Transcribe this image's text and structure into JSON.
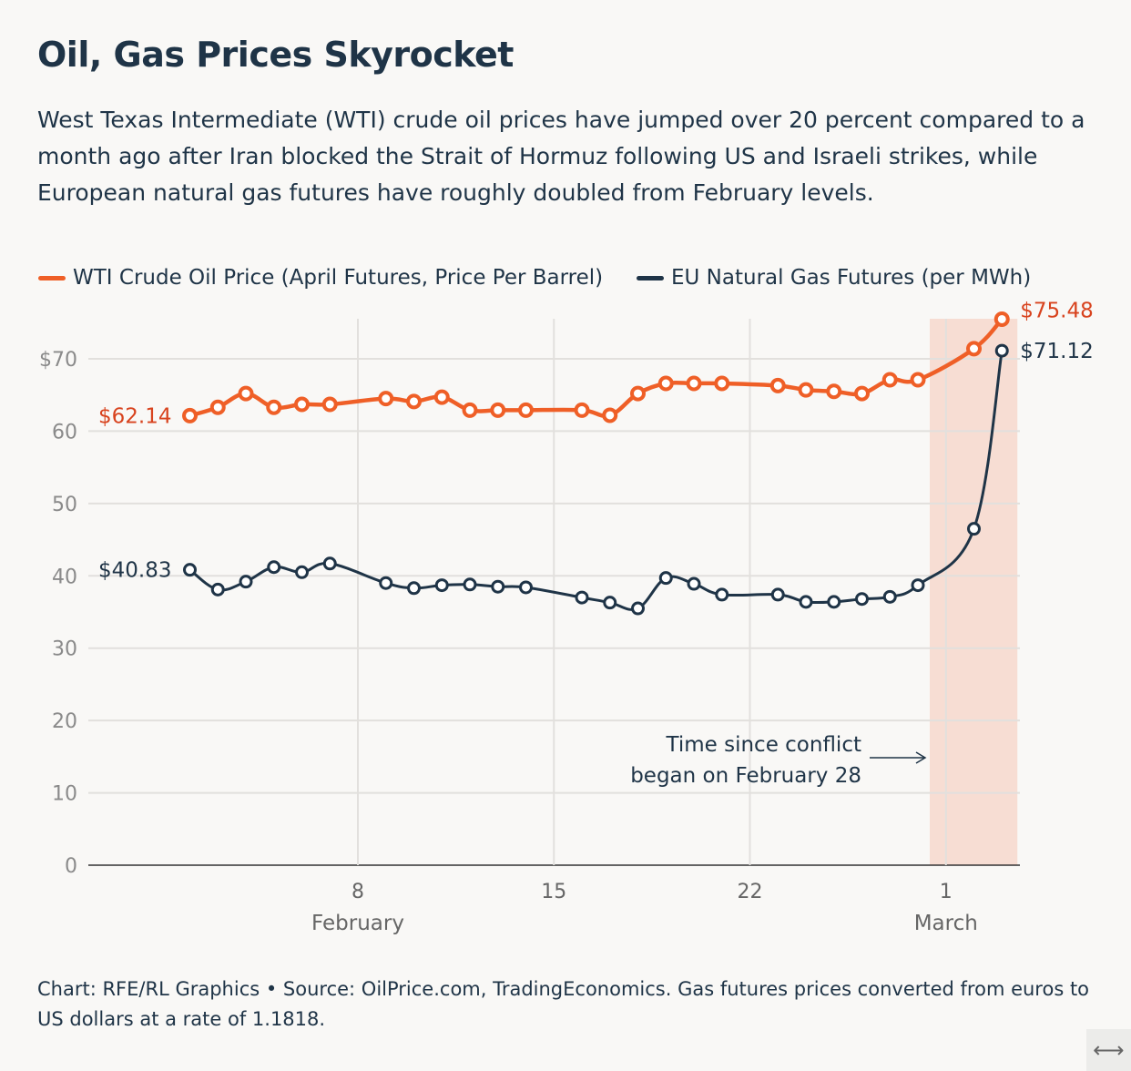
{
  "header": {
    "title": "Oil, Gas Prices Skyrocket",
    "subtitle": "West Texas Intermediate (WTI) crude oil prices have jumped over 20 percent compared to a month ago after Iran blocked the Strait of Hormuz following US and Israeli strikes, while European natural gas futures have roughly doubled from February levels."
  },
  "footer": {
    "text": "Chart: RFE/RL Graphics • Source: OilPrice.com, TradingEconomics. Gas futures prices converted from euros to US dollars at a rate of 1.1818."
  },
  "controls": {
    "expand_icon": "left-right-arrow-icon",
    "expand_glyph": "⟷"
  },
  "chart_data": {
    "type": "line",
    "grid": true,
    "legend_placement": "top-left",
    "ylim": [
      0,
      75
    ],
    "y_ticks": [
      0,
      10,
      20,
      30,
      40,
      50,
      60,
      70
    ],
    "y_tick_labels": [
      "0",
      "10",
      "20",
      "30",
      "40",
      "50",
      "60",
      "$70"
    ],
    "x_ticks": [
      {
        "date": "Feb 8",
        "label": "8",
        "sublabel": "February"
      },
      {
        "date": "Feb 15",
        "label": "15",
        "sublabel": ""
      },
      {
        "date": "Feb 22",
        "label": "22",
        "sublabel": ""
      },
      {
        "date": "Mar 1",
        "label": "1",
        "sublabel": "March"
      }
    ],
    "x": [
      "Feb 2",
      "Feb 3",
      "Feb 4",
      "Feb 5",
      "Feb 6",
      "Feb 7",
      "Feb 9",
      "Feb 10",
      "Feb 11",
      "Feb 12",
      "Feb 13",
      "Feb 14",
      "Feb 16",
      "Feb 17",
      "Feb 18",
      "Feb 19",
      "Feb 20",
      "Feb 21",
      "Feb 23",
      "Feb 24",
      "Feb 25",
      "Feb 26",
      "Feb 27",
      "Feb 28",
      "Mar 2",
      "Mar 3"
    ],
    "series": [
      {
        "name": "WTI Crude Oil Price (April Futures, Price Per Barrel)",
        "color": "#ef5f27",
        "label_color": "#d8431e",
        "values": [
          62.14,
          63.3,
          65.2,
          63.3,
          63.7,
          63.7,
          64.5,
          64.1,
          64.7,
          62.9,
          62.9,
          62.9,
          62.9,
          62.2,
          65.2,
          66.6,
          66.6,
          66.6,
          66.3,
          65.7,
          65.5,
          65.2,
          67.1,
          67.1,
          71.4,
          75.48
        ],
        "start_label": "$62.14",
        "end_label": "$75.48"
      },
      {
        "name": "EU Natural Gas Futures (per MWh)",
        "color": "#1f3447",
        "label_color": "#1f3447",
        "values": [
          40.83,
          38.1,
          39.2,
          41.2,
          40.5,
          41.7,
          39.0,
          38.3,
          38.7,
          38.8,
          38.5,
          38.4,
          37.0,
          36.3,
          35.5,
          39.7,
          38.9,
          37.4,
          37.4,
          36.4,
          36.4,
          36.8,
          37.1,
          38.7,
          46.5,
          71.12
        ],
        "start_label": "$40.83",
        "end_label": "$71.12"
      }
    ],
    "highlight": {
      "from": "Feb 28",
      "to": "Mar 3",
      "color": "#f7ddd3"
    },
    "annotation": {
      "lines": [
        "Time since conflict",
        "began on February 28"
      ]
    }
  }
}
